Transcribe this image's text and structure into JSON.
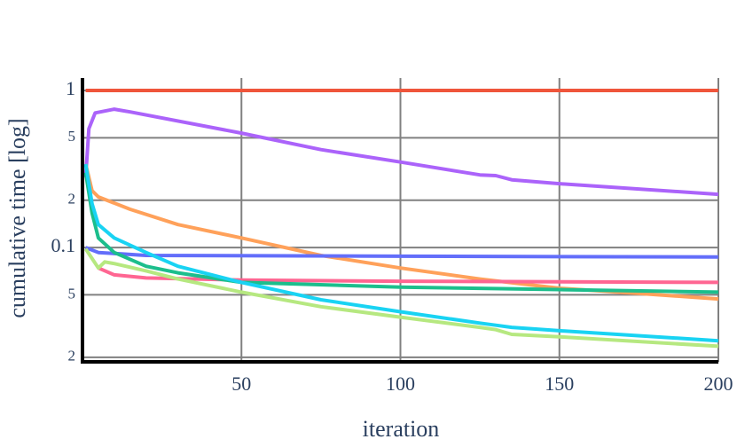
{
  "chart_data": {
    "type": "line",
    "xlabel": "iteration",
    "ylabel": "cumulative time [log]",
    "log_y": true,
    "grid": true,
    "xlim": [
      0,
      200
    ],
    "xticks": [
      50,
      100,
      150,
      200
    ],
    "ylim": [
      0.0187,
      1.2
    ],
    "yticks": [
      {
        "value": 0.02,
        "label": "2"
      },
      {
        "value": 0.05,
        "label": "5"
      },
      0.1,
      {
        "value": 0.2,
        "label": "2"
      },
      {
        "value": 0.5,
        "label": "5"
      },
      1
    ],
    "series": [
      {
        "color": "#ef553b",
        "x": [
          1,
          200
        ],
        "values": [
          1,
          1
        ]
      },
      {
        "color": "#ab63fa",
        "x": [
          1,
          2,
          4,
          10,
          15,
          50,
          75,
          100,
          125,
          130,
          135,
          150,
          200
        ],
        "values": [
          0.28,
          0.57,
          0.72,
          0.76,
          0.73,
          0.535,
          0.42,
          0.35,
          0.29,
          0.287,
          0.27,
          0.255,
          0.218
        ]
      },
      {
        "color": "#ffa15a",
        "x": [
          1,
          3,
          5,
          15,
          30,
          50,
          75,
          100,
          125,
          150,
          175,
          200
        ],
        "values": [
          0.34,
          0.23,
          0.21,
          0.175,
          0.14,
          0.115,
          0.089,
          0.074,
          0.063,
          0.055,
          0.051,
          0.047
        ]
      },
      {
        "color": "#636efa",
        "x": [
          1,
          5,
          20,
          100,
          200
        ],
        "values": [
          0.1,
          0.093,
          0.089,
          0.088,
          0.087
        ]
      },
      {
        "color": "#ff6692",
        "x": [
          5,
          10,
          20,
          50,
          100,
          200
        ],
        "values": [
          0.074,
          0.067,
          0.064,
          0.062,
          0.061,
          0.06
        ]
      },
      {
        "color": "#1cbe8c",
        "x": [
          1,
          3,
          5,
          10,
          20,
          30,
          50,
          100,
          150,
          200
        ],
        "values": [
          0.3,
          0.166,
          0.115,
          0.093,
          0.076,
          0.069,
          0.06,
          0.056,
          0.054,
          0.052
        ]
      },
      {
        "color": "#19d3f3",
        "x": [
          1,
          3,
          5,
          10,
          20,
          30,
          50,
          75,
          100,
          125,
          130,
          135,
          150,
          200
        ],
        "values": [
          0.34,
          0.19,
          0.14,
          0.115,
          0.093,
          0.076,
          0.06,
          0.0465,
          0.039,
          0.033,
          0.032,
          0.031,
          0.0295,
          0.0255
        ]
      },
      {
        "color": "#b6e880",
        "x": [
          1,
          5,
          7,
          10,
          20,
          30,
          50,
          75,
          100,
          125,
          130,
          135,
          150,
          200
        ],
        "values": [
          0.098,
          0.074,
          0.081,
          0.079,
          0.071,
          0.063,
          0.052,
          0.042,
          0.036,
          0.031,
          0.03,
          0.028,
          0.027,
          0.0235
        ]
      }
    ]
  }
}
